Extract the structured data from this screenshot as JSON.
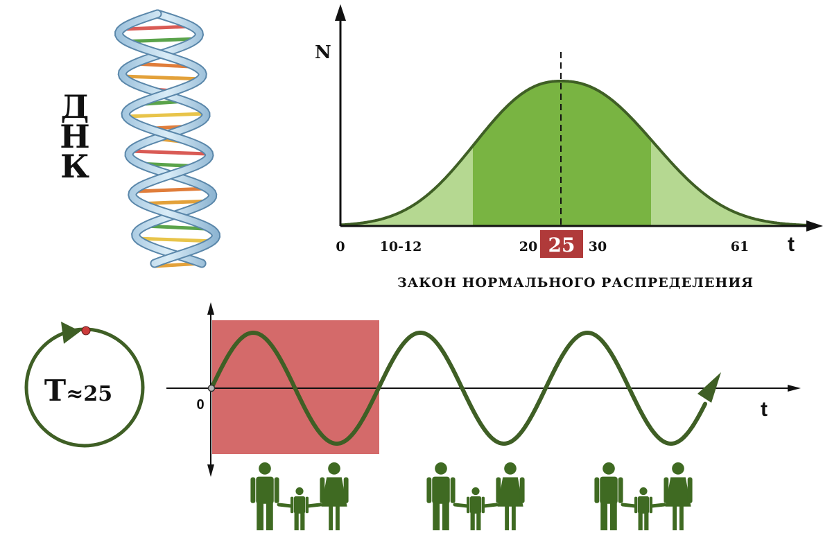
{
  "dna": {
    "letters": [
      "Д",
      "Н",
      "К"
    ]
  },
  "normal_chart": {
    "y_axis_label": "N",
    "x_axis_label": "t",
    "tick_labels": [
      "0",
      "10-12",
      "20",
      "30",
      "61"
    ],
    "mean_label": "25",
    "caption": "ЗАКОН НОРМАЛЬНОГО РАСПРЕДЕЛЕНИЯ"
  },
  "cycle": {
    "period_symbol": "T",
    "approx_sign": "≈",
    "period_value": "25"
  },
  "wave_chart": {
    "origin_label": "0",
    "x_axis_label": "t"
  },
  "colors": {
    "curve_dark": "#3f5f25",
    "fill_core": "#79b442",
    "fill_tail": "#b5d891",
    "highlight_box": "#d46a6a",
    "mean_box": "#b03a3a",
    "family_green": "#3f6a22",
    "marker_red": "#cc3b3b"
  }
}
